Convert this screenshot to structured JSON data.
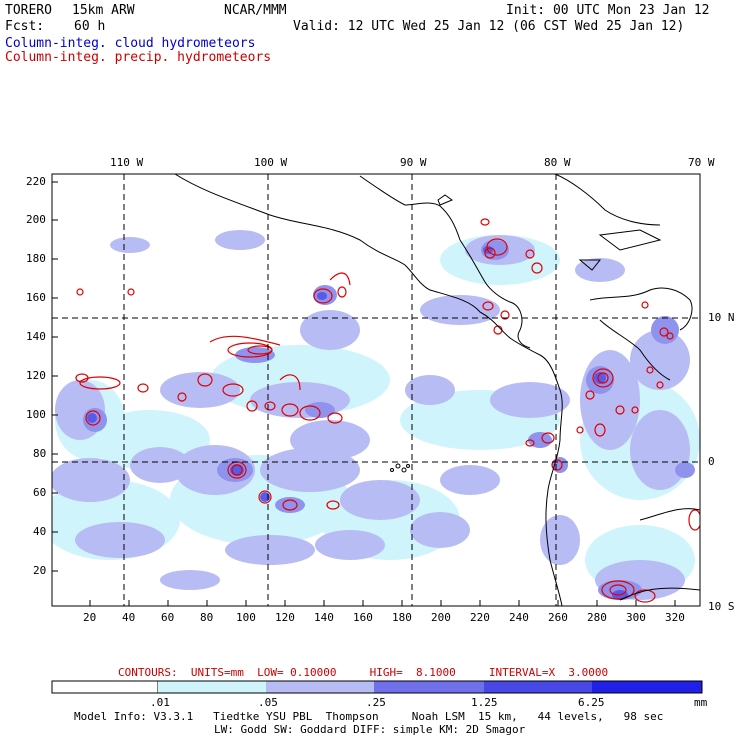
{
  "header": {
    "model": "TORERO",
    "resolution": "15km ARW",
    "center": "NCAR/MMM",
    "init": "Init: 00 UTC Mon 23 Jan 12",
    "fcst_label": "Fcst:",
    "fcst_value": "60 h",
    "valid": "Valid: 12 UTC Wed 25 Jan 12 (06 CST Wed 25 Jan 12)",
    "field1": "Column-integ. cloud hydrometeors",
    "field2": "Column-integ. precip. hydrometeors"
  },
  "map": {
    "lon_labels": [
      "110 W",
      "100 W",
      "90 W",
      "80 W",
      "70 W"
    ],
    "lat_labels": [
      "10 N",
      "0",
      "10 S"
    ],
    "y_ticks": [
      "220",
      "200",
      "180",
      "160",
      "140",
      "120",
      "100",
      "80",
      "60",
      "40",
      "20"
    ],
    "x_ticks": [
      "20",
      "40",
      "60",
      "80",
      "100",
      "120",
      "140",
      "160",
      "180",
      "200",
      "220",
      "240",
      "260",
      "280",
      "300",
      "320"
    ],
    "colors": {
      "coastline": "#000000",
      "precip_contour": "#e00000",
      "gridline": "#000000"
    }
  },
  "contour_info": {
    "text": "CONTOURS:  UNITS=mm  LOW= 0.10000     HIGH=  8.1000     INTERVAL=X  3.0000",
    "units": "mm",
    "low": 0.1,
    "high": 8.1,
    "interval": 3.0
  },
  "colorbar": {
    "labels": [
      ".01",
      ".05",
      ".25",
      "1.25",
      "6.25"
    ],
    "unit": "mm",
    "colors": [
      "#ffffff",
      "#d0f4fb",
      "#b8bcf4",
      "#9d9ff0",
      "#7070ea",
      "#4848e6",
      "#2020e8"
    ]
  },
  "footer": {
    "line1": "Model Info: V3.3.1   Tiedtke YSU PBL  Thompson     Noah LSM  15 km,   44 levels,   98 sec",
    "line2": "LW: Godd SW: Goddard DIFF: simple KM: 2D Smagor"
  }
}
